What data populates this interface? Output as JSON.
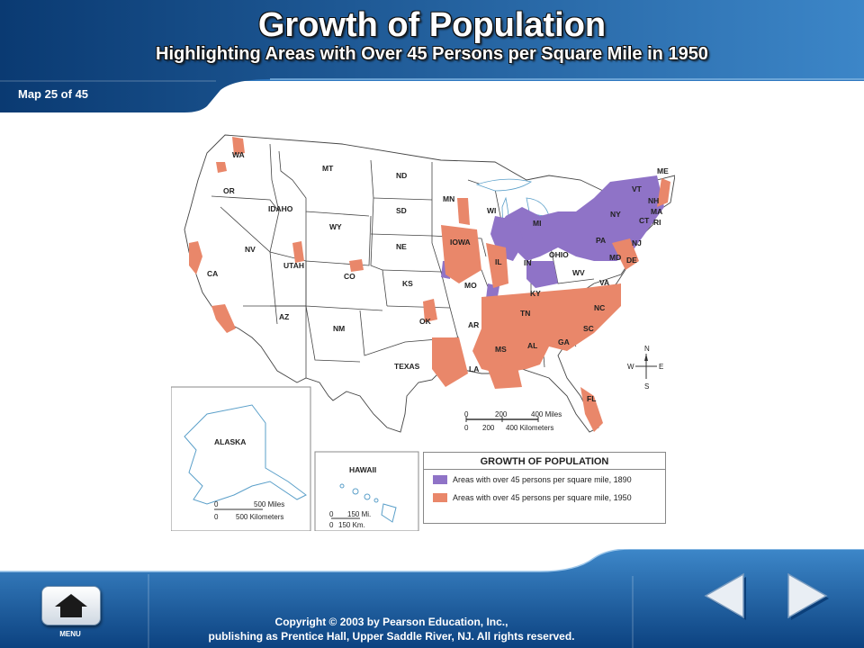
{
  "header": {
    "title": "Growth of Population",
    "subtitle": "Highlighting Areas with Over 45 Persons per Square Mile in 1950",
    "map_counter": "Map 25 of 45"
  },
  "map": {
    "state_labels": [
      "WA",
      "OR",
      "IDAHO",
      "MT",
      "WY",
      "NV",
      "CA",
      "UTAH",
      "CO",
      "AZ",
      "NM",
      "ND",
      "SD",
      "NE",
      "KS",
      "OK",
      "TEXAS",
      "MN",
      "IOWA",
      "MO",
      "AR",
      "LA",
      "WI",
      "IL",
      "MI",
      "IN",
      "OHIO",
      "KY",
      "TN",
      "MS",
      "AL",
      "GA",
      "FL",
      "SC",
      "NC",
      "VA",
      "WV",
      "PA",
      "NY",
      "MD",
      "DE",
      "NJ",
      "CT",
      "RI",
      "MA",
      "VT",
      "NH",
      "ME"
    ],
    "compass": {
      "n": "N",
      "s": "S",
      "e": "E",
      "w": "W"
    },
    "scale_main": {
      "miles_ticks": [
        "0",
        "200",
        "400 Miles"
      ],
      "km_ticks": [
        "0",
        "200",
        "400 Kilometers"
      ]
    },
    "alaska": {
      "label": "ALASKA",
      "scale_miles": "500 Miles",
      "scale_km": "500 Kilometers",
      "zero": "0"
    },
    "hawaii": {
      "label": "HAWAII",
      "scale_miles": "150 Mi.",
      "scale_km": "150 Km.",
      "zero": "0"
    }
  },
  "legend": {
    "title": "GROWTH OF POPULATION",
    "items": [
      {
        "label": "Areas with over 45 persons per square mile, 1890",
        "color": "#8f73c7"
      },
      {
        "label": "Areas with over 45 persons per square mile, 1950",
        "color": "#e9876a"
      }
    ]
  },
  "footer": {
    "menu_label": "MENU",
    "copyright_line1": "Copyright © 2003 by Pearson Education, Inc.,",
    "copyright_line2": "publishing as Prentice Hall, Upper Saddle River, NJ. All rights reserved."
  },
  "colors": {
    "banner_dark": "#0b3f7a",
    "banner_light": "#3a83c6",
    "pop_1890": "#8f73c7",
    "pop_1950": "#e9876a"
  }
}
